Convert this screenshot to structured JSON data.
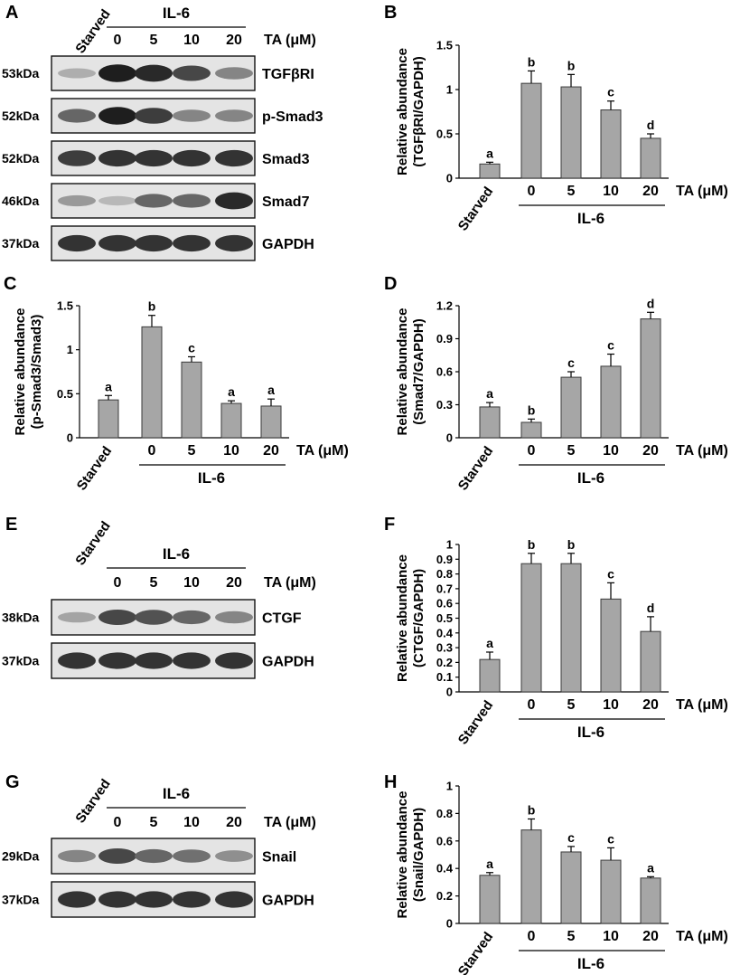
{
  "panels": [
    {
      "letter": "A",
      "kind": "blot",
      "treatment_header": "IL-6",
      "starved_label": "Starved",
      "lane_labels": [
        "0",
        "5",
        "10",
        "20"
      ],
      "treatment_unit": "TA (μM)",
      "rows": [
        {
          "weight": "53kDa",
          "protein": "TGFβRI",
          "intensity": [
            0.25,
            0.95,
            0.9,
            0.75,
            0.45
          ]
        },
        {
          "weight": "52kDa",
          "protein": "p-Smad3",
          "intensity": [
            0.6,
            0.95,
            0.8,
            0.45,
            0.45
          ]
        },
        {
          "weight": "52kDa",
          "protein": "Smad3",
          "intensity": [
            0.8,
            0.85,
            0.85,
            0.85,
            0.85
          ]
        },
        {
          "weight": "46kDa",
          "protein": "Smad7",
          "intensity": [
            0.35,
            0.2,
            0.6,
            0.6,
            0.9
          ]
        },
        {
          "weight": "37kDa",
          "protein": "GAPDH",
          "intensity": [
            0.85,
            0.85,
            0.85,
            0.85,
            0.85
          ]
        }
      ]
    },
    {
      "letter": "E",
      "kind": "blot",
      "treatment_header": "IL-6",
      "starved_label": "Starved",
      "lane_labels": [
        "0",
        "5",
        "10",
        "20"
      ],
      "treatment_unit": "TA (μM)",
      "rows": [
        {
          "weight": "38kDa",
          "protein": "CTGF",
          "intensity": [
            0.3,
            0.75,
            0.7,
            0.6,
            0.45
          ]
        },
        {
          "weight": "37kDa",
          "protein": "GAPDH",
          "intensity": [
            0.85,
            0.85,
            0.85,
            0.85,
            0.85
          ]
        }
      ]
    },
    {
      "letter": "G",
      "kind": "blot",
      "treatment_header": "IL-6",
      "starved_label": "Starved",
      "lane_labels": [
        "0",
        "5",
        "10",
        "20"
      ],
      "treatment_unit": "TA (μM)",
      "rows": [
        {
          "weight": "29kDa",
          "protein": "Snail",
          "intensity": [
            0.45,
            0.75,
            0.6,
            0.55,
            0.4
          ]
        },
        {
          "weight": "37kDa",
          "protein": "GAPDH",
          "intensity": [
            0.85,
            0.85,
            0.85,
            0.85,
            0.85
          ]
        }
      ]
    }
  ],
  "chart_data": [
    {
      "letter": "B",
      "type": "bar",
      "categories": [
        "Starved",
        "0",
        "5",
        "10",
        "20"
      ],
      "group_label": "IL-6",
      "x_unit": "TA (μM)",
      "ylabel": [
        "Relative abundance",
        "(TGFβRI/GAPDH)"
      ],
      "ylim": [
        0,
        1.5
      ],
      "yticks": [
        "0",
        "0.5",
        "1",
        "1.5"
      ],
      "values": [
        0.16,
        1.07,
        1.03,
        0.77,
        0.45
      ],
      "errors": [
        0.02,
        0.14,
        0.14,
        0.1,
        0.05
      ],
      "letters": [
        "a",
        "b",
        "b",
        "c",
        "d"
      ]
    },
    {
      "letter": "C",
      "type": "bar",
      "categories": [
        "Starved",
        "0",
        "5",
        "10",
        "20"
      ],
      "group_label": "IL-6",
      "x_unit": "TA (μM)",
      "ylabel": [
        "Relative abundance",
        "(p-Smad3/Smad3)"
      ],
      "ylim": [
        0,
        1.5
      ],
      "yticks": [
        "0",
        "0.5",
        "1",
        "1.5"
      ],
      "values": [
        0.43,
        1.26,
        0.86,
        0.39,
        0.36
      ],
      "errors": [
        0.05,
        0.13,
        0.06,
        0.03,
        0.08
      ],
      "letters": [
        "a",
        "b",
        "c",
        "a",
        "a"
      ]
    },
    {
      "letter": "D",
      "type": "bar",
      "categories": [
        "Starved",
        "0",
        "5",
        "10",
        "20"
      ],
      "group_label": "IL-6",
      "x_unit": "TA (μM)",
      "ylabel": [
        "Relative abundance",
        "(Smad7/GAPDH)"
      ],
      "ylim": [
        0,
        1.2
      ],
      "yticks": [
        "0",
        "0.3",
        "0.6",
        "0.9",
        "1.2"
      ],
      "values": [
        0.28,
        0.14,
        0.55,
        0.65,
        1.08
      ],
      "errors": [
        0.04,
        0.03,
        0.05,
        0.11,
        0.06
      ],
      "letters": [
        "a",
        "b",
        "c",
        "c",
        "d"
      ]
    },
    {
      "letter": "F",
      "type": "bar",
      "categories": [
        "Starved",
        "0",
        "5",
        "10",
        "20"
      ],
      "group_label": "IL-6",
      "x_unit": "TA (μM)",
      "ylabel": [
        "Relative abundance",
        "(CTGF/GAPDH)"
      ],
      "ylim": [
        0,
        1
      ],
      "yticks": [
        "0",
        "0.1",
        "0.2",
        "0.3",
        "0.4",
        "0.5",
        "0.6",
        "0.7",
        "0.8",
        "0.9",
        "1"
      ],
      "values": [
        0.22,
        0.87,
        0.87,
        0.63,
        0.41
      ],
      "errors": [
        0.05,
        0.07,
        0.07,
        0.11,
        0.1
      ],
      "letters": [
        "a",
        "b",
        "b",
        "c",
        "d"
      ]
    },
    {
      "letter": "H",
      "type": "bar",
      "categories": [
        "Starved",
        "0",
        "5",
        "10",
        "20"
      ],
      "group_label": "IL-6",
      "x_unit": "TA (μM)",
      "ylabel": [
        "Relative abundance",
        "(Snail/GAPDH)"
      ],
      "ylim": [
        0,
        1
      ],
      "yticks": [
        "0",
        "0.2",
        "0.4",
        "0.6",
        "0.8",
        "1"
      ],
      "values": [
        0.35,
        0.68,
        0.52,
        0.46,
        0.33
      ],
      "errors": [
        0.02,
        0.08,
        0.04,
        0.09,
        0.01
      ],
      "letters": [
        "a",
        "b",
        "c",
        "c",
        "a"
      ]
    }
  ]
}
